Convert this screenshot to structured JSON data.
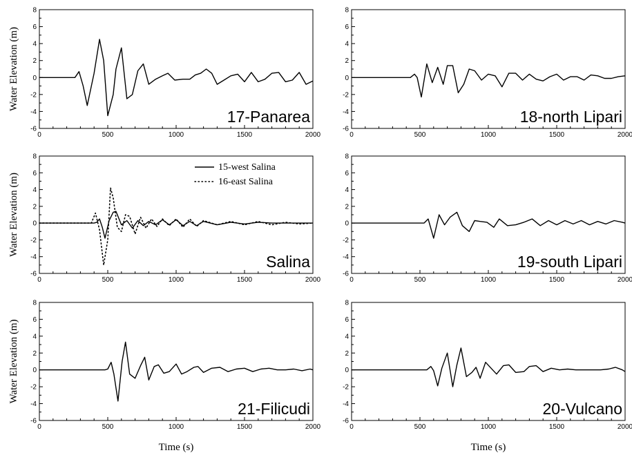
{
  "chart_data": [
    {
      "type": "line",
      "panel_label": "17-Panarea",
      "ylabel": "Water Elevation (m)",
      "xlabel": "",
      "xlim": [
        0,
        2000
      ],
      "ylim": [
        -6,
        8
      ],
      "xticks": [
        "0",
        "500",
        "1000",
        "1500",
        "2000"
      ],
      "yticks": [
        "-6",
        "-4",
        "-2",
        "0",
        "2",
        "4",
        "6",
        "8"
      ],
      "series": [
        {
          "style": "solid",
          "x": [
            0,
            260,
            290,
            320,
            350,
            400,
            440,
            470,
            500,
            540,
            560,
            600,
            640,
            680,
            720,
            760,
            800,
            850,
            900,
            940,
            990,
            1050,
            1100,
            1140,
            1180,
            1220,
            1260,
            1300,
            1350,
            1400,
            1450,
            1500,
            1550,
            1600,
            1650,
            1700,
            1750,
            1800,
            1850,
            1900,
            1950,
            2000
          ],
          "y": [
            0,
            0,
            0.7,
            -1,
            -3.3,
            0.5,
            4.5,
            2,
            -4.5,
            -2,
            1,
            3.5,
            -2.5,
            -2,
            0.8,
            1.6,
            -0.8,
            -0.2,
            0.2,
            0.5,
            -0.3,
            -0.2,
            -0.2,
            0.3,
            0.5,
            1,
            0.5,
            -0.8,
            -0.3,
            0.2,
            0.4,
            -0.5,
            0.6,
            -0.5,
            -0.2,
            0.5,
            0.6,
            -0.5,
            -0.3,
            0.6,
            -0.8,
            -0.4
          ]
        }
      ]
    },
    {
      "type": "line",
      "panel_label": "18-north Lipari",
      "ylabel": "",
      "xlabel": "",
      "xlim": [
        0,
        2000
      ],
      "ylim": [
        -6,
        8
      ],
      "xticks": [
        "0",
        "500",
        "1000",
        "1500",
        "2000"
      ],
      "yticks": [
        "-6",
        "-4",
        "-2",
        "0",
        "2",
        "4",
        "6",
        "8"
      ],
      "series": [
        {
          "style": "solid",
          "x": [
            0,
            430,
            460,
            480,
            510,
            550,
            590,
            630,
            670,
            700,
            740,
            780,
            820,
            860,
            900,
            950,
            1000,
            1050,
            1100,
            1150,
            1200,
            1250,
            1300,
            1350,
            1400,
            1450,
            1500,
            1550,
            1600,
            1650,
            1700,
            1750,
            1800,
            1850,
            1900,
            1950,
            2000
          ],
          "y": [
            0,
            0,
            0.4,
            0,
            -2.3,
            1.6,
            -0.6,
            1.2,
            -0.8,
            1.4,
            1.4,
            -1.8,
            -0.8,
            1,
            0.8,
            -0.3,
            0.4,
            0.2,
            -1.1,
            0.5,
            0.5,
            -0.3,
            0.4,
            -0.2,
            -0.4,
            0.1,
            0.4,
            -0.3,
            0.1,
            0.1,
            -0.3,
            0.3,
            0.2,
            -0.1,
            -0.1,
            0.1,
            0.2
          ]
        }
      ]
    },
    {
      "type": "line",
      "panel_label": "Salina",
      "ylabel": "Water Elevation (m)",
      "xlabel": "",
      "xlim": [
        0,
        2000
      ],
      "ylim": [
        -6,
        8
      ],
      "xticks": [
        "0",
        "500",
        "1000",
        "1500",
        "2000"
      ],
      "yticks": [
        "-6",
        "-4",
        "-2",
        "0",
        "2",
        "4",
        "6",
        "8"
      ],
      "legend": [
        "15-west Salina",
        "16-east Salina"
      ],
      "series": [
        {
          "name": "15-west Salina",
          "style": "solid",
          "x": [
            0,
            400,
            420,
            440,
            460,
            480,
            510,
            540,
            560,
            600,
            640,
            680,
            720,
            760,
            800,
            850,
            900,
            950,
            1000,
            1050,
            1100,
            1150,
            1200,
            1300,
            1400,
            1500,
            1600,
            1700,
            1800,
            1900,
            2000
          ],
          "y": [
            0,
            0,
            0.1,
            0.5,
            -0.5,
            -1.8,
            0.3,
            1.3,
            1.4,
            -0.2,
            0.3,
            -0.6,
            0.3,
            -0.3,
            0.2,
            -0.2,
            0.4,
            -0.2,
            0.4,
            -0.3,
            0.2,
            -0.3,
            0.2,
            -0.2,
            0.1,
            -0.1,
            0.1,
            0,
            0,
            0,
            0
          ]
        },
        {
          "name": "16-east Salina",
          "style": "dotted",
          "x": [
            0,
            380,
            410,
            440,
            470,
            500,
            520,
            540,
            570,
            600,
            630,
            660,
            700,
            740,
            780,
            820,
            860,
            900,
            950,
            1000,
            1050,
            1100,
            1150,
            1200,
            1300,
            1400,
            1500,
            1600,
            1700,
            1800,
            1900,
            2000
          ],
          "y": [
            0,
            0,
            1.2,
            -0.8,
            -5,
            -2,
            4.2,
            3,
            -0.5,
            -1,
            1,
            0.8,
            -1.3,
            0.7,
            -0.6,
            0.5,
            -0.4,
            0.5,
            -0.3,
            0.5,
            -0.5,
            0.5,
            -0.4,
            0.3,
            -0.2,
            0.2,
            -0.2,
            0.2,
            -0.2,
            0.1,
            -0.1,
            0
          ]
        }
      ]
    },
    {
      "type": "line",
      "panel_label": "19-south Lipari",
      "ylabel": "",
      "xlabel": "",
      "xlim": [
        0,
        2000
      ],
      "ylim": [
        -6,
        8
      ],
      "xticks": [
        "0",
        "500",
        "1000",
        "1500",
        "2000"
      ],
      "yticks": [
        "-6",
        "-4",
        "-2",
        "0",
        "2",
        "4",
        "6",
        "8"
      ],
      "series": [
        {
          "style": "solid",
          "x": [
            0,
            530,
            560,
            600,
            640,
            680,
            720,
            770,
            810,
            860,
            900,
            940,
            990,
            1040,
            1080,
            1140,
            1200,
            1260,
            1320,
            1380,
            1440,
            1500,
            1560,
            1620,
            1680,
            1740,
            1800,
            1860,
            1920,
            1980,
            2000
          ],
          "y": [
            0,
            0,
            0.5,
            -1.8,
            1,
            -0.2,
            0.7,
            1.3,
            -0.3,
            -1,
            0.3,
            0.2,
            0.1,
            -0.5,
            0.5,
            -0.3,
            -0.2,
            0.1,
            0.5,
            -0.3,
            0.3,
            -0.2,
            0.3,
            -0.1,
            0.3,
            -0.2,
            0.2,
            -0.1,
            0.3,
            0.1,
            0
          ]
        }
      ]
    },
    {
      "type": "line",
      "panel_label": "21-Filicudi",
      "ylabel": "Water Elevation (m)",
      "xlabel": "Time (s)",
      "xlim": [
        0,
        2000
      ],
      "ylim": [
        -6,
        8
      ],
      "xticks": [
        "0",
        "500",
        "1000",
        "1500",
        "2000"
      ],
      "yticks": [
        "-6",
        "-4",
        "-2",
        "0",
        "2",
        "4",
        "6",
        "8"
      ],
      "series": [
        {
          "style": "solid",
          "x": [
            0,
            480,
            500,
            525,
            545,
            575,
            605,
            630,
            660,
            700,
            740,
            770,
            800,
            840,
            870,
            910,
            950,
            1000,
            1040,
            1080,
            1130,
            1160,
            1200,
            1260,
            1320,
            1380,
            1440,
            1500,
            1560,
            1620,
            1680,
            1740,
            1800,
            1860,
            1920,
            1980,
            2000
          ],
          "y": [
            0,
            0,
            0.1,
            0.9,
            -0.5,
            -3.7,
            1,
            3.3,
            -0.5,
            -1,
            0.5,
            1.5,
            -1.2,
            0.4,
            0.6,
            -0.4,
            -0.2,
            0.7,
            -0.5,
            -0.2,
            0.3,
            0.4,
            -0.3,
            0.2,
            0.3,
            -0.2,
            0.1,
            0.2,
            -0.2,
            0.1,
            0.2,
            0,
            0,
            0.1,
            -0.1,
            0.1,
            0
          ]
        }
      ]
    },
    {
      "type": "line",
      "panel_label": "20-Vulcano",
      "ylabel": "",
      "xlabel": "Time (s)",
      "xlim": [
        0,
        2000
      ],
      "ylim": [
        -6,
        8
      ],
      "xticks": [
        "0",
        "500",
        "1000",
        "1500",
        "2000"
      ],
      "yticks": [
        "-6",
        "-4",
        "-2",
        "0",
        "2",
        "4",
        "6",
        "8"
      ],
      "series": [
        {
          "style": "solid",
          "x": [
            0,
            550,
            580,
            600,
            630,
            660,
            700,
            740,
            770,
            800,
            840,
            880,
            910,
            940,
            980,
            1020,
            1060,
            1110,
            1150,
            1200,
            1260,
            1300,
            1350,
            1400,
            1460,
            1520,
            1580,
            1640,
            1700,
            1760,
            1820,
            1880,
            1930,
            1980,
            2000
          ],
          "y": [
            0,
            0,
            0.4,
            -0.1,
            -1.9,
            0.2,
            2,
            -2,
            0.6,
            2.6,
            -0.8,
            -0.3,
            0.3,
            -1,
            0.9,
            0.2,
            -0.5,
            0.5,
            0.6,
            -0.3,
            -0.2,
            0.4,
            0.5,
            -0.2,
            0.2,
            0,
            0.1,
            0,
            0,
            0,
            0,
            0.1,
            0.3,
            0,
            -0.2
          ]
        }
      ]
    }
  ]
}
